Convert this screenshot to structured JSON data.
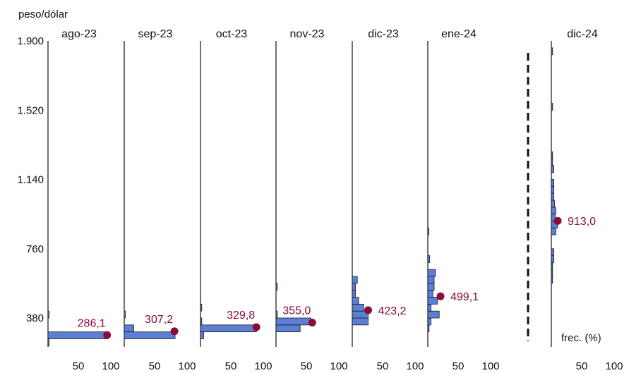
{
  "chart_data": {
    "type": "histogram-panels",
    "ylabel": "peso/dólar",
    "y_ticks": [
      380,
      760,
      1140,
      1520,
      1900
    ],
    "y_tick_labels": [
      "380",
      "760",
      "1.140",
      "1.520",
      "1.900"
    ],
    "ylim": [
      190,
      1920
    ],
    "x_ticks": [
      50,
      100
    ],
    "x_tick_labels": [
      "50",
      "100"
    ],
    "xlim": [
      0,
      100
    ],
    "xlabel_last": "frec. (%)",
    "bin_width": 38,
    "colors": {
      "bar_fill": "#5b7fd4",
      "bar_stroke": "#1a1a1a",
      "point": "#8b0a3c",
      "axis": "#111111"
    },
    "panels": [
      {
        "title": "ago-23",
        "bins": [
          [
            228,
            1
          ],
          [
            266,
            94
          ],
          [
            380,
            1
          ]
        ],
        "point": {
          "value": 286.1,
          "label": "286,1",
          "x": 93
        }
      },
      {
        "title": "sep-23",
        "bins": [
          [
            266,
            80
          ],
          [
            304,
            15
          ],
          [
            380,
            1
          ]
        ],
        "point": {
          "value": 307.2,
          "label": "307,2",
          "x": 79
        }
      },
      {
        "title": "oct-23",
        "bins": [
          [
            266,
            5
          ],
          [
            304,
            88
          ],
          [
            342,
            2
          ],
          [
            418,
            2
          ]
        ],
        "point": {
          "value": 329.8,
          "label": "329,8",
          "x": 88
        }
      },
      {
        "title": "nov-23",
        "bins": [
          [
            304,
            38
          ],
          [
            342,
            55
          ],
          [
            380,
            2
          ],
          [
            532,
            2
          ]
        ],
        "point": {
          "value": 355.0,
          "label": "355,0",
          "x": 57
        }
      },
      {
        "title": "dic-23",
        "bins": [
          [
            342,
            25
          ],
          [
            380,
            25
          ],
          [
            418,
            18
          ],
          [
            456,
            10
          ],
          [
            494,
            5
          ],
          [
            532,
            5
          ],
          [
            570,
            8
          ]
        ],
        "point": {
          "value": 423.2,
          "label": "423,2",
          "x": 25
        }
      },
      {
        "title": "ene-24",
        "bins": [
          [
            304,
            2
          ],
          [
            342,
            5
          ],
          [
            380,
            18
          ],
          [
            418,
            5
          ],
          [
            456,
            15
          ],
          [
            494,
            8
          ],
          [
            532,
            10
          ],
          [
            570,
            10
          ],
          [
            608,
            12
          ],
          [
            684,
            3
          ],
          [
            836,
            1
          ]
        ],
        "point": {
          "value": 499.1,
          "label": "499,1",
          "x": 20
        }
      },
      {
        "title": "dic-24",
        "bins": [
          [
            570,
            2
          ],
          [
            608,
            2
          ],
          [
            646,
            2
          ],
          [
            684,
            4
          ],
          [
            722,
            4
          ],
          [
            836,
            7
          ],
          [
            874,
            10
          ],
          [
            912,
            6
          ],
          [
            950,
            7
          ],
          [
            988,
            5
          ],
          [
            1026,
            4
          ],
          [
            1064,
            4
          ],
          [
            1102,
            4
          ],
          [
            1178,
            4
          ],
          [
            1216,
            2
          ],
          [
            1254,
            2
          ],
          [
            1520,
            2
          ],
          [
            1824,
            2
          ]
        ],
        "point": {
          "value": 913.0,
          "label": "913,0",
          "x": 10
        }
      }
    ]
  }
}
